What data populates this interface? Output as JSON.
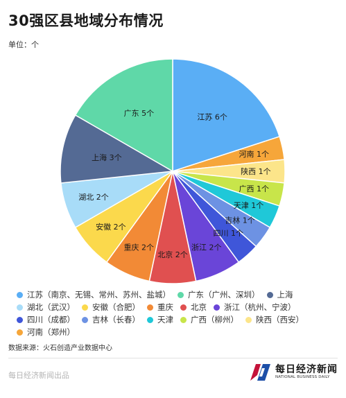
{
  "title": "30强区县地域分布情况",
  "unit": "单位：个",
  "chart_data": {
    "type": "pie",
    "slices": [
      {
        "label": "江苏 6个",
        "value": 6,
        "color": "#5aaef5"
      },
      {
        "label": "河南 1个",
        "value": 1,
        "color": "#f6a63a"
      },
      {
        "label": "陕西 1个",
        "value": 1,
        "color": "#fce58a"
      },
      {
        "label": "广西 1个",
        "value": 1,
        "color": "#c8e54a"
      },
      {
        "label": "天津 1个",
        "value": 1,
        "color": "#1fc8d8"
      },
      {
        "label": "吉林 1个",
        "value": 1,
        "color": "#6d92e3"
      },
      {
        "label": "四川 1个",
        "value": 1,
        "color": "#3f56d9"
      },
      {
        "label": "浙江 2个",
        "value": 2,
        "color": "#6a45d8"
      },
      {
        "label": "北京 2个",
        "value": 2,
        "color": "#e05050"
      },
      {
        "label": "重庆 2个",
        "value": 2,
        "color": "#f28a36"
      },
      {
        "label": "安徽 2个",
        "value": 2,
        "color": "#fbd94c"
      },
      {
        "label": "湖北 2个",
        "value": 2,
        "color": "#a8dcf8"
      },
      {
        "label": "上海 3个",
        "value": 3,
        "color": "#546a94"
      },
      {
        "label": "广东 5个",
        "value": 5,
        "color": "#5fd8a8"
      }
    ],
    "legend": [
      {
        "label": "江苏（南京、无锡、常州、苏州、盐城）",
        "color": "#5aaef5"
      },
      {
        "label": "广东（广州、深圳）",
        "color": "#5fd8a8"
      },
      {
        "label": "上海",
        "color": "#546a94"
      },
      {
        "label": "湖北（武汉）",
        "color": "#a8dcf8"
      },
      {
        "label": "安徽（合肥）",
        "color": "#fbd94c"
      },
      {
        "label": "重庆",
        "color": "#f28a36"
      },
      {
        "label": "北京",
        "color": "#e05050"
      },
      {
        "label": "浙江（杭州、宁波）",
        "color": "#6a45d8"
      },
      {
        "label": "四川（成都）",
        "color": "#3f56d9"
      },
      {
        "label": "吉林（长春）",
        "color": "#6d92e3"
      },
      {
        "label": "天津",
        "color": "#1fc8d8"
      },
      {
        "label": "广西（柳州）",
        "color": "#c8e54a"
      },
      {
        "label": "陕西（西安）",
        "color": "#fce58a"
      },
      {
        "label": "河南（郑州）",
        "color": "#f6a63a"
      }
    ],
    "legend_placement": "bottom"
  },
  "source": "数据来源：火石创造产业数据中心",
  "footer": "每日经济新闻出品",
  "brand": {
    "name_cn": "每日经济新闻",
    "name_en": "NATIONAL BUSINESS DAILY",
    "accent": "#c4123a",
    "accent2": "#1d4fa8"
  }
}
